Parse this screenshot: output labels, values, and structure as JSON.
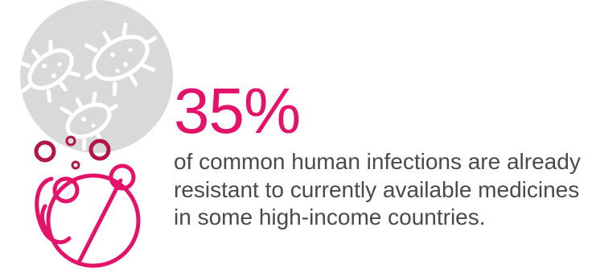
{
  "infographic": {
    "stat_value": "35%",
    "stat_description": "of common human infections are already resistant to currently available medicines in some high-income countries."
  },
  "colors": {
    "accent_pink": "#e3136a",
    "accent_crimson": "#b1154a",
    "circle_gray": "#d9d9d9",
    "text_gray": "#4a4a4a"
  },
  "icons": [
    "bacteria-icon",
    "pill-capsule-icon",
    "bubbles-icon"
  ]
}
